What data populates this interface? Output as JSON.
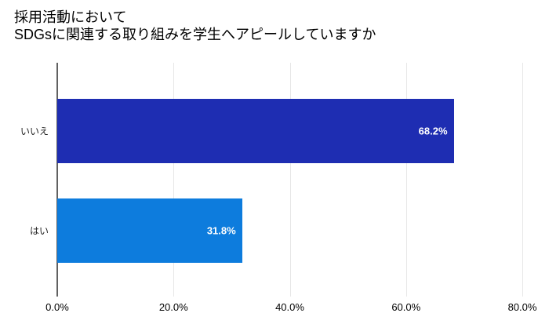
{
  "title": {
    "line1": "採用活動において",
    "line2": "SDGsに関連する取り組みを学生へアピールしていますか"
  },
  "chart_data": {
    "type": "bar",
    "orientation": "horizontal",
    "title": "採用活動において SDGsに関連する取り組みを学生へアピールしていますか",
    "categories": [
      "いいえ",
      "はい"
    ],
    "values": [
      68.2,
      31.8
    ],
    "value_labels": [
      "68.2%",
      "31.8%"
    ],
    "bar_colors": [
      "#1E2DB2",
      "#0D7CDD"
    ],
    "xlim": [
      0,
      80
    ],
    "x_tick_values": [
      0,
      20,
      40,
      60,
      80
    ],
    "x_ticks": [
      "0.0%",
      "20.0%",
      "40.0%",
      "60.0%",
      "80.0%"
    ],
    "xlabel": "",
    "ylabel": "",
    "grid": true,
    "legend_position": "none",
    "colors": {
      "background": "#ffffff",
      "gridline": "#e6e6e6",
      "axis_line": "#616161",
      "title_text": "#000000",
      "tick_text": "#000000",
      "category_text": "#1f1f1f",
      "value_label_text": "#ffffff"
    }
  }
}
